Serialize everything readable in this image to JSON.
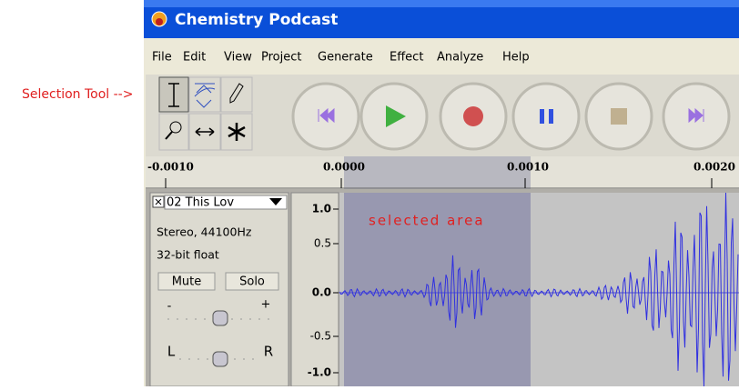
{
  "window": {
    "title": "Chemistry Podcast"
  },
  "menu": [
    "File",
    "Edit",
    "View",
    "Project",
    "Generate",
    "Effect",
    "Analyze",
    "Help"
  ],
  "annotation": "Selection Tool -->",
  "ruler": [
    "-0.0010",
    "0.0000",
    "0.0010",
    "0.0020"
  ],
  "track": {
    "name": "02 This Lov",
    "format": "Stereo, 44100Hz",
    "sample": "32-bit float",
    "buttons": [
      "Mute",
      "Solo"
    ],
    "gain": [
      "-",
      "+"
    ],
    "pan": [
      "L",
      "R"
    ]
  },
  "scale": [
    "1.0",
    "0.5",
    "0.0",
    "-0.5",
    "-1.0"
  ],
  "selection_label": "selected area"
}
